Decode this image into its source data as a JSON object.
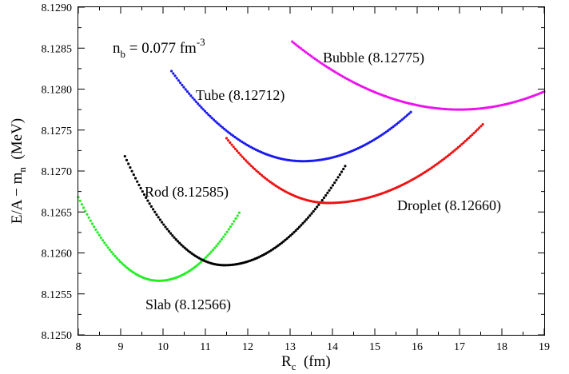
{
  "chart_data": {
    "type": "scatter",
    "xlabel": {
      "main": "R",
      "sub": "c",
      "rest": "  (fm)"
    },
    "ylabel": {
      "main": "E/A − m",
      "sub": "n",
      "rest": "  (MeV)"
    },
    "annotation": {
      "main": "n",
      "sub": "b",
      "mid": " = 0.077 fm",
      "sup": "-3"
    },
    "xlim": [
      8,
      19
    ],
    "ylim": [
      8.125,
      8.129
    ],
    "x_ticks": [
      "8",
      "9",
      "10",
      "11",
      "12",
      "13",
      "14",
      "15",
      "16",
      "17",
      "18",
      "19"
    ],
    "y_ticks": [
      "8.1250",
      "8.1255",
      "8.1260",
      "8.1265",
      "8.1270",
      "8.1275",
      "8.1280",
      "8.1285",
      "8.1290"
    ],
    "series": [
      {
        "name": "Slab (8.12566)",
        "color": "#22ee22",
        "anchor": [
          8.0,
          8.12668
        ],
        "vertex": [
          9.9,
          8.12566
        ],
        "end": [
          11.8,
          8.12649
        ]
      },
      {
        "name": "Rod (8.12585)",
        "color": "#000000",
        "anchor": [
          9.1,
          8.12718
        ],
        "vertex": [
          11.45,
          8.12585
        ],
        "end": [
          14.3,
          8.12706
        ]
      },
      {
        "name": "Droplet (8.12660)",
        "color": "#ee1111",
        "anchor": [
          11.5,
          8.1274
        ],
        "vertex": [
          13.9,
          8.12661
        ],
        "end": [
          17.55,
          8.12757
        ]
      },
      {
        "name": "Tube (8.12712)",
        "color": "#1a1aee",
        "anchor": [
          10.2,
          8.12822
        ],
        "vertex": [
          13.3,
          8.12712
        ],
        "end": [
          15.85,
          8.12772
        ]
      },
      {
        "name": "Bubble (8.12775)",
        "color": "#ee11ee",
        "anchor": [
          13.05,
          8.12858
        ],
        "vertex": [
          17.0,
          8.12775
        ],
        "end": [
          19.0,
          8.12797
        ]
      }
    ]
  }
}
